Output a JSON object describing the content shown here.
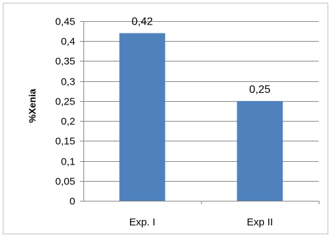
{
  "chart_data": {
    "type": "bar",
    "title": "",
    "xlabel": "",
    "ylabel": "%Xenia",
    "categories": [
      "Exp. I",
      "Exp II"
    ],
    "values": [
      0.42,
      0.25
    ],
    "data_labels": [
      "0,42",
      "0,25"
    ],
    "ylim": [
      0,
      0.45
    ],
    "y_ticks": [
      0,
      0.05,
      0.1,
      0.15,
      0.2,
      0.25,
      0.3,
      0.35,
      0.4,
      0.45
    ],
    "y_tick_labels": [
      "0",
      "0,05",
      "0,1",
      "0,15",
      "0,2",
      "0,25",
      "0,3",
      "0,35",
      "0,4",
      "0,45"
    ],
    "grid": true,
    "legend": "none",
    "colors": {
      "bar": "#4f81bd",
      "grid": "#868686",
      "axis": "#868686",
      "border": "#bfbfbf"
    }
  }
}
